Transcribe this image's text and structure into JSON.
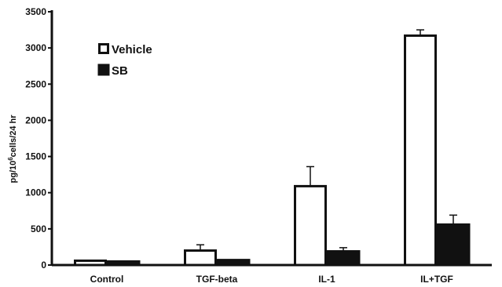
{
  "chart_data": {
    "type": "bar",
    "categories": [
      "Control",
      "TGF-beta",
      "IL-1",
      "IL+TGF"
    ],
    "series": [
      {
        "name": "Vehicle",
        "values": [
          60,
          200,
          1090,
          3170
        ],
        "errors": [
          0,
          80,
          270,
          80
        ],
        "fill": "#ffffff",
        "stroke": "#111111"
      },
      {
        "name": "SB",
        "values": [
          60,
          80,
          200,
          570
        ],
        "errors": [
          0,
          0,
          40,
          120
        ],
        "fill": "#111111",
        "stroke": "#111111"
      }
    ],
    "ylim": [
      0,
      3500
    ],
    "yticks": [
      0,
      500,
      1000,
      1500,
      2000,
      2500,
      3000,
      3500
    ],
    "ylabel_parts": {
      "pre": "pg/10",
      "sup": "6",
      "post": "cells/24 hr"
    },
    "xlabel": "",
    "grid": false,
    "legend_position": "top-left"
  }
}
